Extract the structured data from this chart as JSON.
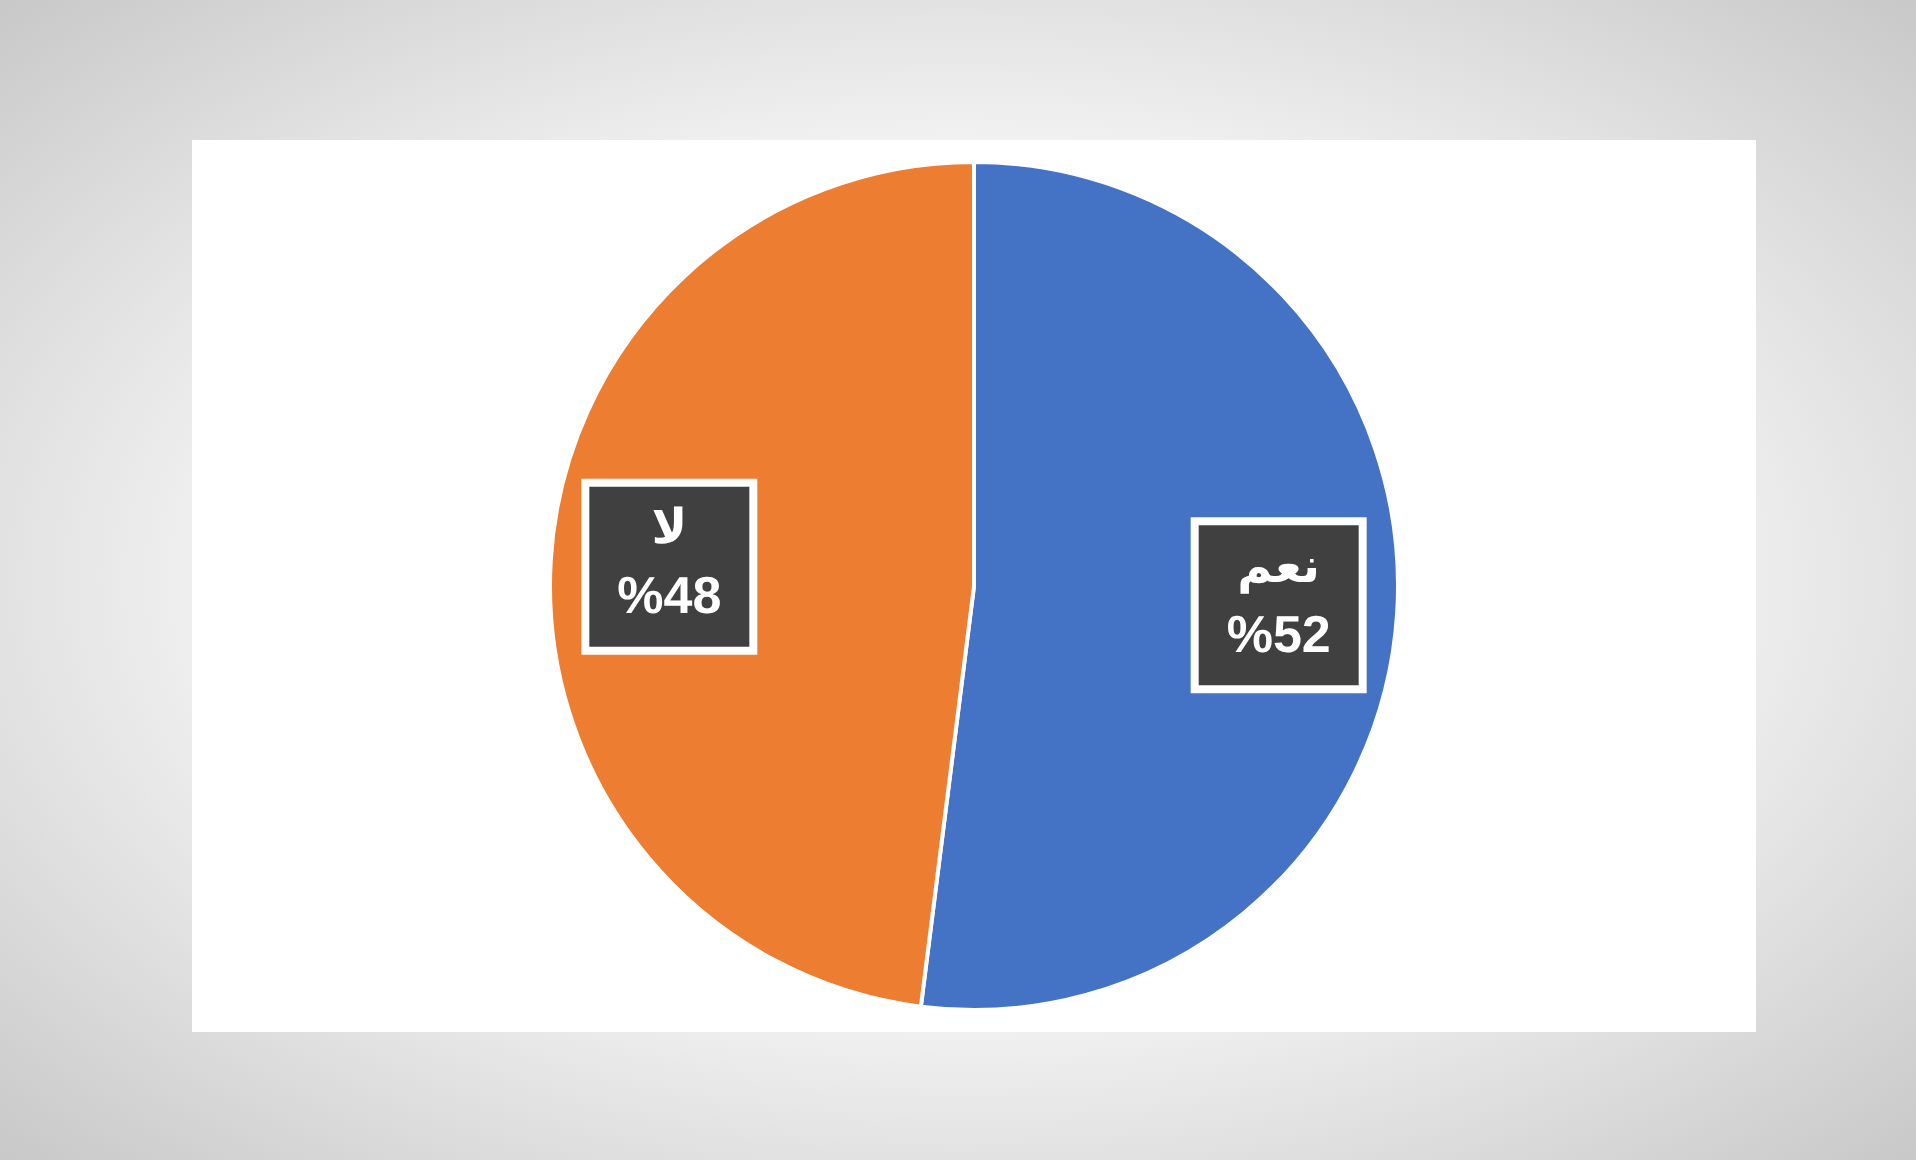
{
  "chart_data": {
    "type": "pie",
    "categories": [
      "نعم",
      "لا"
    ],
    "values": [
      52,
      48
    ],
    "colors": [
      "#4472c4",
      "#ed7d31"
    ],
    "value_labels": [
      "%52",
      "%48"
    ],
    "legend": false
  }
}
